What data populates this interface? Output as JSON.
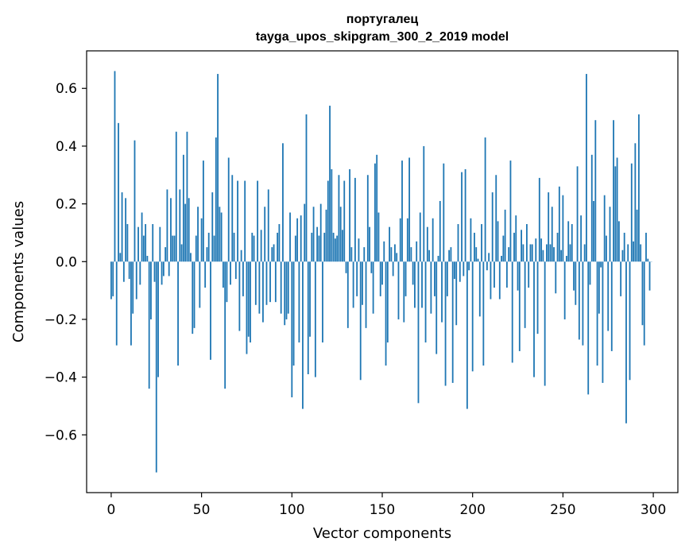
{
  "chart_data": {
    "type": "bar",
    "title": "португалец",
    "subtitle": "tayga_upos_skipgram_300_2_2019 model",
    "xlabel": "Vector components",
    "ylabel": "Components values",
    "xlim": [
      -13.6,
      313.6
    ],
    "ylim": [
      -0.8,
      0.73
    ],
    "xticks": [
      0,
      50,
      100,
      150,
      200,
      250,
      300
    ],
    "xtick_labels": [
      "0",
      "50",
      "100",
      "150",
      "200",
      "250",
      "300"
    ],
    "yticks": [
      -0.6,
      -0.4,
      -0.2,
      0.0,
      0.2,
      0.4,
      0.6
    ],
    "ytick_labels": [
      "−0.6",
      "−0.4",
      "−0.2",
      "0.0",
      "0.2",
      "0.4",
      "0.6"
    ],
    "bar_color": "#1f77b4",
    "grid": false,
    "legend": "none",
    "x": [
      0,
      1,
      2,
      3,
      4,
      5,
      6,
      7,
      8,
      9,
      10,
      11,
      12,
      13,
      14,
      15,
      16,
      17,
      18,
      19,
      20,
      21,
      22,
      23,
      24,
      25,
      26,
      27,
      28,
      29,
      30,
      31,
      32,
      33,
      34,
      35,
      36,
      37,
      38,
      39,
      40,
      41,
      42,
      43,
      44,
      45,
      46,
      47,
      48,
      49,
      50,
      51,
      52,
      53,
      54,
      55,
      56,
      57,
      58,
      59,
      60,
      61,
      62,
      63,
      64,
      65,
      66,
      67,
      68,
      69,
      70,
      71,
      72,
      73,
      74,
      75,
      76,
      77,
      78,
      79,
      80,
      81,
      82,
      83,
      84,
      85,
      86,
      87,
      88,
      89,
      90,
      91,
      92,
      93,
      94,
      95,
      96,
      97,
      98,
      99,
      100,
      101,
      102,
      103,
      104,
      105,
      106,
      107,
      108,
      109,
      110,
      111,
      112,
      113,
      114,
      115,
      116,
      117,
      118,
      119,
      120,
      121,
      122,
      123,
      124,
      125,
      126,
      127,
      128,
      129,
      130,
      131,
      132,
      133,
      134,
      135,
      136,
      137,
      138,
      139,
      140,
      141,
      142,
      143,
      144,
      145,
      146,
      147,
      148,
      149,
      150,
      151,
      152,
      153,
      154,
      155,
      156,
      157,
      158,
      159,
      160,
      161,
      162,
      163,
      164,
      165,
      166,
      167,
      168,
      169,
      170,
      171,
      172,
      173,
      174,
      175,
      176,
      177,
      178,
      179,
      180,
      181,
      182,
      183,
      184,
      185,
      186,
      187,
      188,
      189,
      190,
      191,
      192,
      193,
      194,
      195,
      196,
      197,
      198,
      199,
      200,
      201,
      202,
      203,
      204,
      205,
      206,
      207,
      208,
      209,
      210,
      211,
      212,
      213,
      214,
      215,
      216,
      217,
      218,
      219,
      220,
      221,
      222,
      223,
      224,
      225,
      226,
      227,
      228,
      229,
      230,
      231,
      232,
      233,
      234,
      235,
      236,
      237,
      238,
      239,
      240,
      241,
      242,
      243,
      244,
      245,
      246,
      247,
      248,
      249,
      250,
      251,
      252,
      253,
      254,
      255,
      256,
      257,
      258,
      259,
      260,
      261,
      262,
      263,
      264,
      265,
      266,
      267,
      268,
      269,
      270,
      271,
      272,
      273,
      274,
      275,
      276,
      277,
      278,
      279,
      280,
      281,
      282,
      283,
      284,
      285,
      286,
      287,
      288,
      289,
      290,
      291,
      292,
      293,
      294,
      295,
      296,
      297,
      298,
      299
    ],
    "values": [
      -0.13,
      -0.12,
      0.66,
      -0.29,
      0.48,
      0.03,
      0.24,
      -0.07,
      0.22,
      0.13,
      -0.06,
      -0.29,
      -0.18,
      0.42,
      -0.13,
      0.12,
      -0.08,
      0.17,
      0.09,
      0.13,
      0.02,
      -0.44,
      -0.2,
      0.13,
      -0.07,
      -0.73,
      -0.4,
      0.12,
      -0.08,
      -0.05,
      0.05,
      0.25,
      -0.05,
      0.22,
      0.09,
      0.09,
      0.45,
      -0.36,
      0.25,
      0.06,
      0.37,
      0.2,
      0.45,
      0.22,
      0.03,
      -0.25,
      -0.23,
      0.09,
      0.19,
      -0.16,
      0.15,
      0.35,
      -0.09,
      0.05,
      0.1,
      -0.34,
      0.24,
      0.09,
      0.43,
      0.65,
      0.19,
      0.17,
      -0.09,
      -0.44,
      -0.14,
      0.36,
      -0.08,
      0.3,
      0.1,
      -0.06,
      0.28,
      -0.24,
      0.04,
      -0.12,
      0.28,
      -0.32,
      -0.26,
      -0.28,
      0.1,
      0.09,
      -0.15,
      0.28,
      -0.18,
      0.11,
      -0.21,
      0.19,
      -0.15,
      0.25,
      -0.14,
      0.05,
      0.06,
      -0.14,
      0.1,
      0.13,
      -0.18,
      0.41,
      -0.22,
      -0.2,
      -0.18,
      0.17,
      -0.47,
      -0.36,
      0.09,
      0.15,
      -0.28,
      0.16,
      -0.51,
      0.2,
      0.51,
      -0.39,
      -0.26,
      0.1,
      0.19,
      -0.4,
      0.12,
      0.09,
      0.2,
      -0.28,
      0.1,
      0.18,
      0.28,
      0.54,
      0.32,
      0.1,
      0.08,
      0.09,
      0.3,
      0.19,
      0.11,
      0.28,
      -0.04,
      -0.23,
      0.32,
      0.05,
      -0.16,
      0.29,
      -0.12,
      0.08,
      -0.41,
      -0.15,
      0.05,
      -0.23,
      0.3,
      0.12,
      -0.04,
      -0.18,
      0.34,
      0.37,
      0.17,
      -0.12,
      -0.08,
      0.07,
      -0.36,
      -0.28,
      0.12,
      0.05,
      -0.05,
      0.06,
      0.03,
      -0.2,
      0.15,
      0.35,
      -0.21,
      -0.12,
      0.15,
      0.36,
      0.05,
      -0.08,
      -0.16,
      0.07,
      -0.49,
      0.17,
      -0.16,
      0.4,
      -0.28,
      0.12,
      0.04,
      -0.18,
      0.15,
      -0.12,
      -0.32,
      0.02,
      0.21,
      -0.21,
      0.34,
      -0.43,
      -0.12,
      0.04,
      0.05,
      -0.42,
      -0.06,
      -0.22,
      0.13,
      -0.07,
      0.31,
      -0.05,
      0.32,
      -0.51,
      -0.03,
      0.15,
      -0.38,
      0.1,
      0.05,
      0.01,
      -0.19,
      0.13,
      -0.36,
      0.43,
      -0.03,
      0.03,
      -0.13,
      0.24,
      -0.09,
      0.3,
      0.14,
      -0.13,
      0.02,
      0.09,
      0.18,
      -0.09,
      0.05,
      0.35,
      -0.35,
      0.1,
      0.16,
      -0.1,
      -0.31,
      0.11,
      0.06,
      -0.23,
      0.13,
      -0.09,
      0.06,
      0.06,
      -0.4,
      0.08,
      -0.25,
      0.29,
      0.08,
      0.04,
      -0.43,
      0.06,
      0.24,
      0.06,
      0.19,
      0.05,
      -0.11,
      0.1,
      0.26,
      0.04,
      0.23,
      -0.2,
      0.02,
      0.14,
      0.06,
      0.13,
      -0.1,
      -0.15,
      0.33,
      -0.27,
      0.16,
      -0.29,
      0.06,
      0.65,
      -0.46,
      -0.08,
      0.37,
      0.21,
      0.49,
      -0.36,
      -0.18,
      -0.02,
      -0.42,
      0.23,
      0.09,
      -0.24,
      0.19,
      -0.31,
      0.49,
      0.33,
      0.36,
      0.14,
      -0.12,
      0.04,
      0.1,
      -0.56,
      0.06,
      -0.41,
      0.34,
      0.07,
      0.41,
      0.18,
      0.51,
      0.06,
      -0.22,
      -0.29,
      0.1,
      0.01,
      -0.1,
      0.0
    ]
  }
}
